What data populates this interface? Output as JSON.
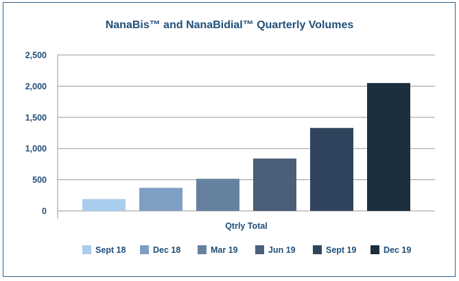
{
  "chart_data": {
    "type": "bar",
    "title": "NanaBis™ and NanaBidial™ Quarterly Volumes",
    "categories": [
      "Qtrly Total"
    ],
    "series": [
      {
        "name": "Sept 18",
        "values": [
          190
        ],
        "color": "#a9cdee"
      },
      {
        "name": "Dec 18",
        "values": [
          370
        ],
        "color": "#7f9ec4"
      },
      {
        "name": "Mar 19",
        "values": [
          515
        ],
        "color": "#66809f"
      },
      {
        "name": "Jun 19",
        "values": [
          840
        ],
        "color": "#4b5f7a"
      },
      {
        "name": "Sept 19",
        "values": [
          1330
        ],
        "color": "#30455d"
      },
      {
        "name": "Dec 19",
        "values": [
          2050
        ],
        "color": "#1b2f3d"
      }
    ],
    "yticks": [
      "0",
      "500",
      "1,000",
      "1,500",
      "2,000",
      "2,500"
    ],
    "ylim": [
      0,
      2500
    ],
    "grid": true,
    "legend": "bottom"
  }
}
